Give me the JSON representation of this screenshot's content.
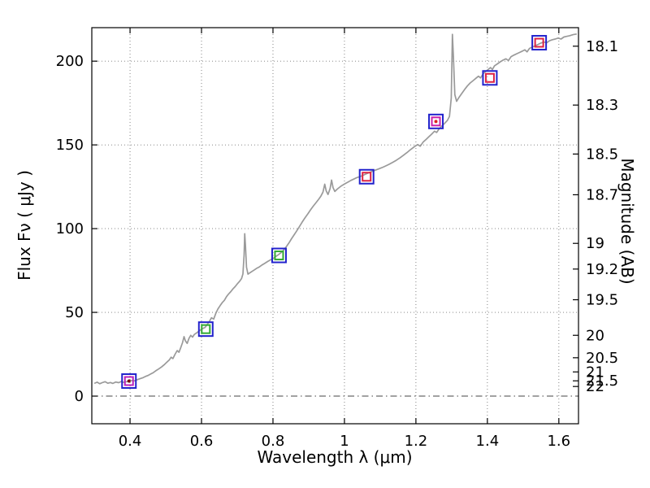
{
  "chart_data": {
    "type": "line",
    "title": "",
    "xlabel": "Wavelength  λ (μm)",
    "ylabel": "Flux  Fν  ( μJy )",
    "ylabel_right": "Magnitude (AB)",
    "xlim": [
      0.293,
      1.655
    ],
    "ylim": [
      -16.5,
      220
    ],
    "grid": "dotted",
    "grid_color": "#777777",
    "frame_color": "#000000",
    "x_ticks": [
      {
        "value": 0.4,
        "label": "0.4"
      },
      {
        "value": 0.6,
        "label": "0.6"
      },
      {
        "value": 0.8,
        "label": "0.8"
      },
      {
        "value": 1.0,
        "label": "1"
      },
      {
        "value": 1.2,
        "label": "1.2"
      },
      {
        "value": 1.4,
        "label": "1.4"
      },
      {
        "value": 1.6,
        "label": "1.6"
      }
    ],
    "y_ticks_left": [
      {
        "value": 0,
        "label": "0"
      },
      {
        "value": 50,
        "label": "50"
      },
      {
        "value": 100,
        "label": "100"
      },
      {
        "value": 150,
        "label": "150"
      },
      {
        "value": 200,
        "label": "200"
      }
    ],
    "y_ticks_right": [
      {
        "flux": 208.93,
        "label": "18.1"
      },
      {
        "flux": 173.78,
        "label": "18.3"
      },
      {
        "flux": 144.54,
        "label": "18.5"
      },
      {
        "flux": 120.23,
        "label": "18.7"
      },
      {
        "flux": 91.2,
        "label": "19"
      },
      {
        "flux": 75.86,
        "label": "19.2"
      },
      {
        "flux": 57.54,
        "label": "19.5"
      },
      {
        "flux": 36.31,
        "label": "20"
      },
      {
        "flux": 22.91,
        "label": "20.5"
      },
      {
        "flux": 14.45,
        "label": "21"
      },
      {
        "flux": 9.12,
        "label": "21.5"
      },
      {
        "flux": 5.75,
        "label": "22"
      }
    ],
    "zero_line": {
      "flux": 0,
      "style": "dash-dot",
      "color": "#444444"
    },
    "spectrum": {
      "name": "observed-spectrum",
      "color": "#9a9a9a",
      "width": 1.7,
      "points": [
        [
          0.3,
          7.6
        ],
        [
          0.308,
          8.3
        ],
        [
          0.315,
          7.4
        ],
        [
          0.322,
          8.0
        ],
        [
          0.33,
          8.6
        ],
        [
          0.338,
          7.7
        ],
        [
          0.345,
          8.1
        ],
        [
          0.352,
          7.6
        ],
        [
          0.36,
          8.4
        ],
        [
          0.368,
          8.0
        ],
        [
          0.375,
          8.7
        ],
        [
          0.382,
          8.2
        ],
        [
          0.39,
          8.6
        ],
        [
          0.398,
          9.0
        ],
        [
          0.405,
          9.3
        ],
        [
          0.412,
          9.1
        ],
        [
          0.42,
          9.8
        ],
        [
          0.428,
          10.4
        ],
        [
          0.435,
          10.9
        ],
        [
          0.442,
          11.6
        ],
        [
          0.45,
          12.3
        ],
        [
          0.458,
          13.2
        ],
        [
          0.465,
          14.0
        ],
        [
          0.472,
          15.1
        ],
        [
          0.48,
          16.2
        ],
        [
          0.488,
          17.4
        ],
        [
          0.495,
          18.6
        ],
        [
          0.502,
          20.0
        ],
        [
          0.51,
          21.6
        ],
        [
          0.515,
          23.2
        ],
        [
          0.52,
          22.4
        ],
        [
          0.526,
          25.0
        ],
        [
          0.532,
          27.2
        ],
        [
          0.537,
          26.2
        ],
        [
          0.542,
          29.0
        ],
        [
          0.547,
          32.0
        ],
        [
          0.551,
          35.5
        ],
        [
          0.555,
          33.0
        ],
        [
          0.56,
          31.5
        ],
        [
          0.565,
          34.5
        ],
        [
          0.57,
          36.3
        ],
        [
          0.575,
          35.2
        ],
        [
          0.58,
          36.8
        ],
        [
          0.588,
          38.0
        ],
        [
          0.595,
          39.2
        ],
        [
          0.602,
          40.2
        ],
        [
          0.61,
          41.0
        ],
        [
          0.616,
          42.8
        ],
        [
          0.622,
          44.6
        ],
        [
          0.628,
          46.8
        ],
        [
          0.634,
          46.0
        ],
        [
          0.64,
          49.4
        ],
        [
          0.646,
          52.0
        ],
        [
          0.652,
          54.0
        ],
        [
          0.658,
          55.8
        ],
        [
          0.664,
          57.2
        ],
        [
          0.67,
          59.4
        ],
        [
          0.676,
          61.0
        ],
        [
          0.682,
          62.4
        ],
        [
          0.688,
          64.0
        ],
        [
          0.694,
          65.4
        ],
        [
          0.7,
          67.0
        ],
        [
          0.706,
          68.4
        ],
        [
          0.712,
          70.2
        ],
        [
          0.716,
          73.0
        ],
        [
          0.719,
          84.0
        ],
        [
          0.721,
          97.0
        ],
        [
          0.723,
          90.0
        ],
        [
          0.726,
          77.0
        ],
        [
          0.73,
          72.8
        ],
        [
          0.735,
          73.6
        ],
        [
          0.741,
          74.4
        ],
        [
          0.748,
          75.4
        ],
        [
          0.755,
          76.4
        ],
        [
          0.762,
          77.2
        ],
        [
          0.77,
          78.4
        ],
        [
          0.778,
          79.4
        ],
        [
          0.785,
          80.4
        ],
        [
          0.792,
          81.2
        ],
        [
          0.8,
          82.2
        ],
        [
          0.808,
          83.4
        ],
        [
          0.815,
          84.4
        ],
        [
          0.822,
          85.6
        ],
        [
          0.83,
          87.2
        ],
        [
          0.838,
          89.4
        ],
        [
          0.845,
          91.6
        ],
        [
          0.852,
          94.0
        ],
        [
          0.86,
          96.6
        ],
        [
          0.868,
          99.2
        ],
        [
          0.875,
          101.6
        ],
        [
          0.882,
          104.0
        ],
        [
          0.89,
          106.6
        ],
        [
          0.898,
          109.0
        ],
        [
          0.905,
          111.2
        ],
        [
          0.912,
          113.2
        ],
        [
          0.92,
          115.4
        ],
        [
          0.928,
          117.6
        ],
        [
          0.934,
          119.4
        ],
        [
          0.94,
          121.8
        ],
        [
          0.945,
          126.5
        ],
        [
          0.949,
          122.5
        ],
        [
          0.954,
          120.4
        ],
        [
          0.96,
          124.0
        ],
        [
          0.964,
          129.0
        ],
        [
          0.968,
          124.5
        ],
        [
          0.973,
          122.2
        ],
        [
          0.98,
          123.6
        ],
        [
          0.988,
          125.0
        ],
        [
          0.995,
          126.0
        ],
        [
          1.003,
          127.0
        ],
        [
          1.01,
          127.8
        ],
        [
          1.018,
          128.8
        ],
        [
          1.026,
          129.6
        ],
        [
          1.034,
          130.4
        ],
        [
          1.042,
          131.0
        ],
        [
          1.05,
          131.6
        ],
        [
          1.058,
          132.4
        ],
        [
          1.066,
          133.2
        ],
        [
          1.075,
          134.0
        ],
        [
          1.085,
          134.8
        ],
        [
          1.095,
          135.6
        ],
        [
          1.105,
          136.4
        ],
        [
          1.115,
          137.4
        ],
        [
          1.125,
          138.4
        ],
        [
          1.135,
          139.6
        ],
        [
          1.145,
          140.8
        ],
        [
          1.155,
          142.2
        ],
        [
          1.165,
          143.8
        ],
        [
          1.175,
          145.4
        ],
        [
          1.185,
          147.2
        ],
        [
          1.195,
          148.8
        ],
        [
          1.205,
          150.2
        ],
        [
          1.212,
          149.2
        ],
        [
          1.22,
          151.6
        ],
        [
          1.228,
          153.2
        ],
        [
          1.236,
          154.8
        ],
        [
          1.244,
          156.4
        ],
        [
          1.252,
          158.2
        ],
        [
          1.258,
          157.4
        ],
        [
          1.265,
          159.6
        ],
        [
          1.272,
          161.2
        ],
        [
          1.28,
          162.8
        ],
        [
          1.288,
          164.6
        ],
        [
          1.294,
          167.0
        ],
        [
          1.299,
          178.0
        ],
        [
          1.302,
          216.0
        ],
        [
          1.305,
          202.0
        ],
        [
          1.309,
          180.0
        ],
        [
          1.314,
          176.0
        ],
        [
          1.32,
          178.2
        ],
        [
          1.328,
          180.6
        ],
        [
          1.336,
          183.0
        ],
        [
          1.344,
          185.2
        ],
        [
          1.352,
          187.0
        ],
        [
          1.36,
          188.4
        ],
        [
          1.368,
          189.8
        ],
        [
          1.375,
          191.0
        ],
        [
          1.381,
          190.0
        ],
        [
          1.388,
          192.4
        ],
        [
          1.395,
          193.8
        ],
        [
          1.402,
          195.0
        ],
        [
          1.409,
          196.2
        ],
        [
          1.414,
          195.0
        ],
        [
          1.42,
          197.2
        ],
        [
          1.428,
          198.4
        ],
        [
          1.436,
          199.6
        ],
        [
          1.444,
          200.6
        ],
        [
          1.452,
          201.4
        ],
        [
          1.459,
          200.4
        ],
        [
          1.466,
          202.6
        ],
        [
          1.474,
          203.6
        ],
        [
          1.482,
          204.4
        ],
        [
          1.49,
          205.2
        ],
        [
          1.498,
          206.0
        ],
        [
          1.505,
          206.8
        ],
        [
          1.511,
          205.6
        ],
        [
          1.518,
          207.6
        ],
        [
          1.526,
          208.4
        ],
        [
          1.534,
          209.2
        ],
        [
          1.542,
          210.0
        ],
        [
          1.55,
          210.8
        ],
        [
          1.558,
          211.4
        ],
        [
          1.566,
          211.0
        ],
        [
          1.574,
          212.2
        ],
        [
          1.582,
          212.8
        ],
        [
          1.59,
          213.2
        ],
        [
          1.598,
          213.8
        ],
        [
          1.606,
          213.2
        ],
        [
          1.614,
          214.4
        ],
        [
          1.622,
          214.8
        ],
        [
          1.63,
          215.2
        ],
        [
          1.64,
          215.8
        ],
        [
          1.65,
          216.2
        ]
      ]
    },
    "photometry": {
      "name": "photometric-points",
      "points": [
        {
          "x": 0.397,
          "flux": 9,
          "outer": "#2222cc",
          "inner": "#bb22bb",
          "dot": "#770000"
        },
        {
          "x": 0.612,
          "flux": 40,
          "outer": "#2222cc",
          "inner": "#33aa33",
          "dot": null
        },
        {
          "x": 0.817,
          "flux": 84,
          "outer": "#2222cc",
          "inner": "#33aa33",
          "dot": null
        },
        {
          "x": 1.062,
          "flux": 131,
          "outer": "#2222cc",
          "inner": "#dd2244",
          "dot": null
        },
        {
          "x": 1.256,
          "flux": 164,
          "outer": "#2222cc",
          "inner": "#cc22aa",
          "dot": "#dd2222"
        },
        {
          "x": 1.407,
          "flux": 190,
          "outer": "#2222cc",
          "inner": "#dd2244",
          "dot": null
        },
        {
          "x": 1.545,
          "flux": 211,
          "outer": "#2222cc",
          "inner": "#dd2244",
          "dot": null
        }
      ]
    }
  }
}
